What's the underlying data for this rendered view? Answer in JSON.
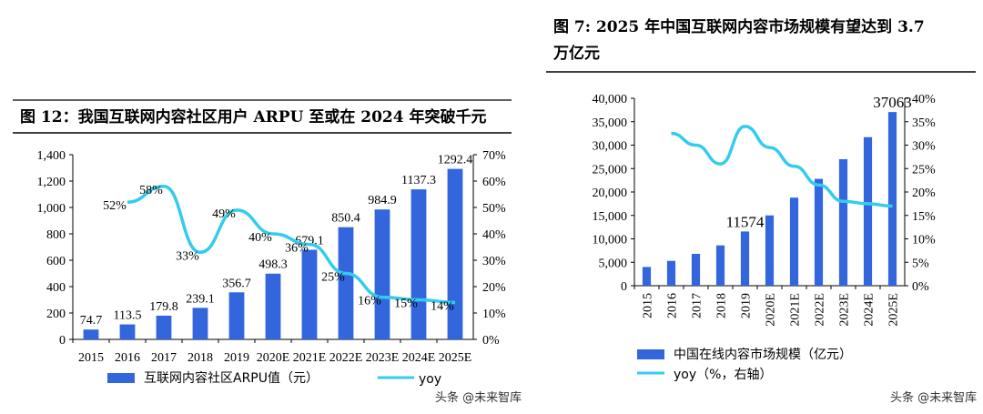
{
  "charts": [
    {
      "title": "图 12：我国互联网内容社区用户 ARPU 至或在 2024 年突破千元",
      "legend_bar": "互联网内容社区ARPU值（元）",
      "legend_line": "yoy",
      "watermark": "头条 @未来智库"
    },
    {
      "title_line1": "图 7: 2025 年中国互联网内容市场规模有望达到 3.7",
      "title_line2": "万亿元",
      "legend_bar": "中国在线内容市场规模（亿元）",
      "legend_line": "yoy（%，右轴）",
      "watermark": "头条 @未来智库"
    }
  ],
  "chart_data": [
    {
      "type": "bar",
      "categories": [
        "2015",
        "2016",
        "2017",
        "2018",
        "2019",
        "2020E",
        "2021E",
        "2022E",
        "2023E",
        "2024E",
        "2025E"
      ],
      "series": [
        {
          "name": "互联网内容社区ARPU值（元）",
          "type": "bar",
          "values": [
            74.7,
            113.5,
            179.8,
            239.1,
            356.7,
            498.3,
            679.1,
            850.4,
            984.9,
            1137.3,
            1292.4
          ],
          "labels": [
            "74.7",
            "113.5",
            "179.8",
            "239.1",
            "356.7",
            "498.3",
            "679.1",
            "850.4",
            "984.9",
            "1137.3",
            "1292.4"
          ]
        },
        {
          "name": "yoy",
          "type": "line",
          "axis": "right",
          "values": [
            null,
            52,
            58,
            33,
            49,
            40,
            36,
            25,
            16,
            15,
            14
          ],
          "labels": [
            "",
            "52%",
            "58%",
            "33%",
            "49%",
            "40%",
            "36%",
            "25%",
            "16%",
            "15%",
            "14%"
          ]
        }
      ],
      "ylim": [
        0,
        1400
      ],
      "yticks": [
        "0",
        "200",
        "400",
        "600",
        "800",
        "1,000",
        "1,200",
        "1,400"
      ],
      "y2lim": [
        0,
        70
      ],
      "y2ticks": [
        "0%",
        "10%",
        "20%",
        "30%",
        "40%",
        "50%",
        "60%",
        "70%"
      ],
      "bar_color": "#3366dd",
      "line_color": "#33ccee",
      "legend": "bottom"
    },
    {
      "type": "bar",
      "categories": [
        "2015",
        "2016",
        "2017",
        "2018",
        "2019",
        "2020E",
        "2021E",
        "2022E",
        "2023E",
        "2024E",
        "2025E"
      ],
      "series": [
        {
          "name": "中国在线内容市场规模（亿元）",
          "type": "bar",
          "values": [
            4000,
            5300,
            6800,
            8600,
            11574,
            15000,
            18800,
            22800,
            27000,
            31700,
            37063
          ],
          "labels": [
            "",
            "",
            "",
            "",
            "11574",
            "",
            "",
            "",
            "",
            "",
            "37063"
          ]
        },
        {
          "name": "yoy（%，右轴）",
          "type": "line",
          "axis": "right",
          "values": [
            null,
            32.5,
            30,
            26,
            34,
            29.5,
            25.5,
            21.5,
            18,
            17.5,
            17
          ]
        }
      ],
      "ylim": [
        0,
        40000
      ],
      "yticks": [
        "0",
        "5,000",
        "10,000",
        "15,000",
        "20,000",
        "25,000",
        "30,000",
        "35,000",
        "40,000"
      ],
      "y2lim": [
        0,
        40
      ],
      "y2ticks": [
        "0%",
        "5%",
        "10%",
        "15%",
        "20%",
        "25%",
        "30%",
        "35%",
        "40%"
      ],
      "bar_color": "#3366dd",
      "line_color": "#33ccee",
      "legend": "bottom"
    }
  ]
}
